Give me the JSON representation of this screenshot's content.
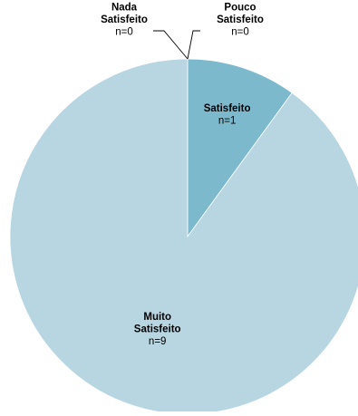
{
  "chart_data": {
    "type": "pie",
    "title": "",
    "slices": [
      {
        "name_lines": [
          "Nada",
          "Satisfeito"
        ],
        "count_label": "n=0",
        "value": 0,
        "color": "#b7d6e1",
        "label_side": "left"
      },
      {
        "name_lines": [
          "Pouco",
          "Satisfeito"
        ],
        "count_label": "n=0",
        "value": 0,
        "color": "#b7d6e1",
        "label_side": "right"
      },
      {
        "name_lines": [
          "Satisfeito"
        ],
        "count_label": "n=1",
        "value": 1,
        "color": "#7cb9cd",
        "label_side": "inside"
      },
      {
        "name_lines": [
          "Muito",
          "Satisfeito"
        ],
        "count_label": "n=9",
        "value": 9,
        "color": "#b7d6e1",
        "label_side": "inside"
      }
    ],
    "start_angle": "top",
    "direction": "clockwise",
    "legend": "none"
  }
}
